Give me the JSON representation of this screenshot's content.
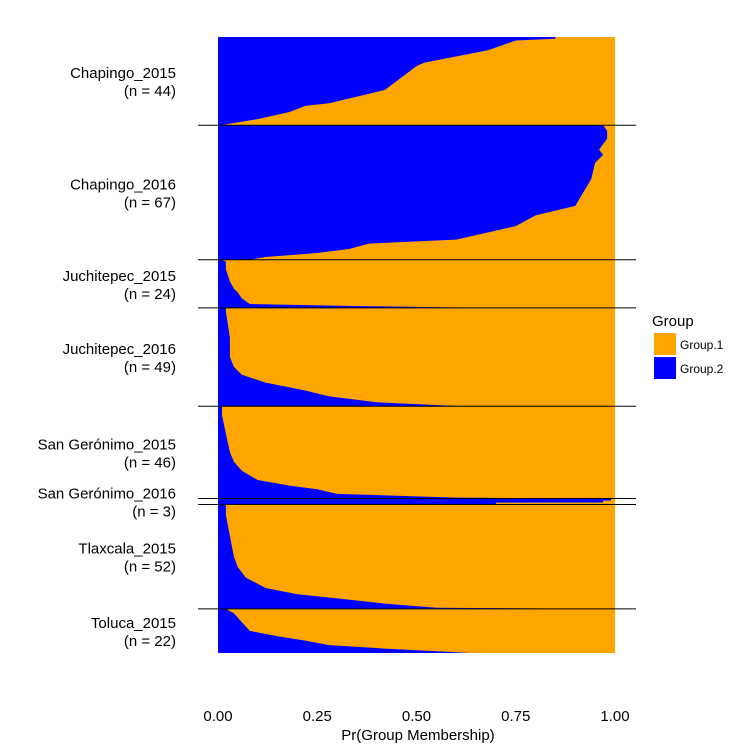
{
  "chart_data": {
    "type": "area",
    "orientation": "horizontal",
    "xlabel": "Pr(Group Membership)",
    "xlim": [
      0,
      1
    ],
    "xticks": [
      "0.00",
      "0.25",
      "0.50",
      "0.75",
      "1.00"
    ],
    "xtick_values": [
      0,
      0.25,
      0.5,
      0.75,
      1.0
    ],
    "legend": {
      "title": "Group",
      "position": "right",
      "entries": [
        {
          "name": "Group.1",
          "color": "#FFA500"
        },
        {
          "name": "Group.2",
          "color": "#0000FF"
        }
      ]
    },
    "colors": {
      "Group.1": "#FFA500",
      "Group.2": "#0000FF"
    },
    "grid": false,
    "populations": [
      {
        "name": "Chapingo_2015",
        "n_label": "(n = 44)",
        "n": 44,
        "pr_group2_boundary": [
          [
            0.0,
            0.85
          ],
          [
            0.02,
            0.85
          ],
          [
            0.04,
            0.75
          ],
          [
            0.15,
            0.68
          ],
          [
            0.29,
            0.52
          ],
          [
            0.33,
            0.5
          ],
          [
            0.5,
            0.45
          ],
          [
            0.6,
            0.42
          ],
          [
            0.75,
            0.28
          ],
          [
            0.78,
            0.22
          ],
          [
            0.85,
            0.18
          ],
          [
            0.93,
            0.1
          ],
          [
            0.99,
            0.02
          ],
          [
            1.0,
            0.01
          ]
        ]
      },
      {
        "name": "Chapingo_2016",
        "n_label": "(n = 67)",
        "n": 67,
        "pr_group2_boundary": [
          [
            0.0,
            0.97
          ],
          [
            0.04,
            0.98
          ],
          [
            0.1,
            0.98
          ],
          [
            0.18,
            0.96
          ],
          [
            0.22,
            0.97
          ],
          [
            0.28,
            0.95
          ],
          [
            0.4,
            0.94
          ],
          [
            0.6,
            0.9
          ],
          [
            0.67,
            0.8
          ],
          [
            0.75,
            0.75
          ],
          [
            0.85,
            0.6
          ],
          [
            0.88,
            0.38
          ],
          [
            0.92,
            0.33
          ],
          [
            0.95,
            0.25
          ],
          [
            0.98,
            0.12
          ],
          [
            1.0,
            0.08
          ]
        ]
      },
      {
        "name": "Juchitepec_2015",
        "n_label": "(n = 24)",
        "n": 24,
        "pr_group2_boundary": [
          [
            0.0,
            0.01
          ],
          [
            0.04,
            0.02
          ],
          [
            0.2,
            0.02
          ],
          [
            0.45,
            0.03
          ],
          [
            0.6,
            0.04
          ],
          [
            0.68,
            0.05
          ],
          [
            0.8,
            0.06
          ],
          [
            0.92,
            0.08
          ],
          [
            0.96,
            0.34
          ],
          [
            1.0,
            0.66
          ]
        ]
      },
      {
        "name": "Juchitepec_2016",
        "n_label": "(n = 49)",
        "n": 49,
        "pr_group2_boundary": [
          [
            0.0,
            0.02
          ],
          [
            0.04,
            0.02
          ],
          [
            0.3,
            0.03
          ],
          [
            0.5,
            0.03
          ],
          [
            0.6,
            0.04
          ],
          [
            0.68,
            0.06
          ],
          [
            0.76,
            0.12
          ],
          [
            0.84,
            0.22
          ],
          [
            0.9,
            0.28
          ],
          [
            0.96,
            0.4
          ],
          [
            0.99,
            0.56
          ],
          [
            1.0,
            0.62
          ]
        ]
      },
      {
        "name": "San Gerónimo_2015",
        "n_label": "(n = 46)",
        "n": 46,
        "pr_group2_boundary": [
          [
            0.0,
            0.01
          ],
          [
            0.1,
            0.01
          ],
          [
            0.3,
            0.02
          ],
          [
            0.5,
            0.03
          ],
          [
            0.6,
            0.04
          ],
          [
            0.7,
            0.06
          ],
          [
            0.8,
            0.1
          ],
          [
            0.86,
            0.18
          ],
          [
            0.9,
            0.25
          ],
          [
            0.95,
            0.3
          ],
          [
            0.99,
            0.6
          ],
          [
            1.0,
            0.88
          ]
        ]
      },
      {
        "name": "San Gerónimo_2016",
        "n_label": "(n = 3)",
        "n": 3,
        "pr_group2_boundary": [
          [
            0.0,
            0.99
          ],
          [
            0.34,
            0.99
          ],
          [
            0.35,
            0.97
          ],
          [
            0.67,
            0.97
          ],
          [
            0.68,
            0.7
          ],
          [
            1.0,
            0.7
          ]
        ]
      },
      {
        "name": "Tlaxcala_2015",
        "n_label": "(n = 52)",
        "n": 52,
        "pr_group2_boundary": [
          [
            0.0,
            0.02
          ],
          [
            0.1,
            0.02
          ],
          [
            0.3,
            0.03
          ],
          [
            0.5,
            0.04
          ],
          [
            0.6,
            0.05
          ],
          [
            0.7,
            0.07
          ],
          [
            0.8,
            0.12
          ],
          [
            0.86,
            0.2
          ],
          [
            0.9,
            0.3
          ],
          [
            0.95,
            0.42
          ],
          [
            0.99,
            0.55
          ],
          [
            1.0,
            0.95
          ]
        ]
      },
      {
        "name": "Toluca_2015",
        "n_label": "(n = 22)",
        "n": 22,
        "pr_group2_boundary": [
          [
            0.0,
            0.02
          ],
          [
            0.1,
            0.04
          ],
          [
            0.3,
            0.06
          ],
          [
            0.5,
            0.08
          ],
          [
            0.62,
            0.15
          ],
          [
            0.72,
            0.22
          ],
          [
            0.82,
            0.28
          ],
          [
            0.9,
            0.42
          ],
          [
            0.96,
            0.55
          ],
          [
            0.99,
            0.62
          ],
          [
            1.0,
            0.64
          ]
        ]
      }
    ]
  }
}
